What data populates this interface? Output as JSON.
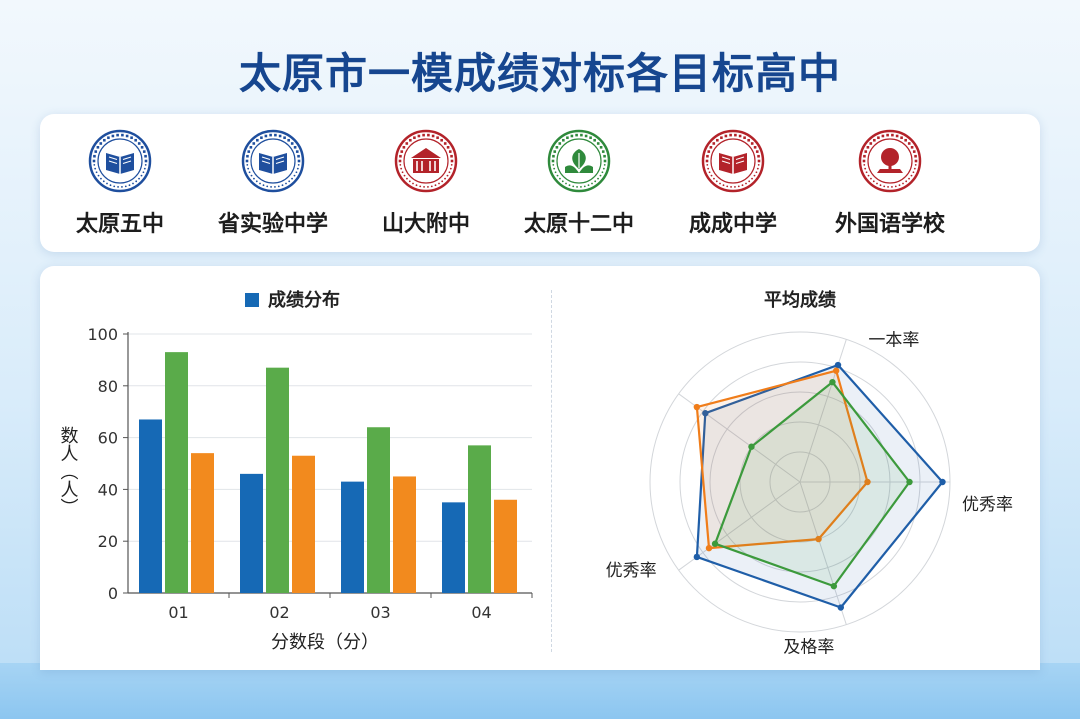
{
  "page": {
    "title": "太原市一模成绩对标各目标高中"
  },
  "schools": [
    {
      "name": "太原五中",
      "color": "#1f4f9e",
      "icon": "book-emblem-icon"
    },
    {
      "name": "省实验中学",
      "color": "#1f4f9e",
      "icon": "book-emblem-icon"
    },
    {
      "name": "山大附中",
      "color": "#b3232a",
      "icon": "building-emblem-icon"
    },
    {
      "name": "太原十二中",
      "color": "#2f8a3c",
      "icon": "leaf-emblem-icon"
    },
    {
      "name": "成成中学",
      "color": "#b3232a",
      "icon": "book-emblem-icon"
    },
    {
      "name": "外国语学校",
      "color": "#b3232a",
      "icon": "tree-emblem-icon"
    }
  ],
  "chart_data": [
    {
      "type": "bar",
      "title": "",
      "legend": [
        "成绩分布"
      ],
      "categories": [
        "01",
        "02",
        "03",
        "04"
      ],
      "series": [
        {
          "values": [
            67,
            46,
            43,
            35
          ],
          "color": "#1669b5"
        },
        {
          "values": [
            93,
            87,
            64,
            57
          ],
          "color": "#5aab4a"
        },
        {
          "values": [
            54,
            53,
            45,
            36
          ],
          "color": "#f28a1e"
        }
      ],
      "xlabel": "分数段（分）",
      "ylabel": "数人（人）",
      "ylim": [
        0,
        100
      ],
      "yticks": [
        0,
        20,
        40,
        60,
        80,
        100
      ],
      "grid": true,
      "legend_position": "top"
    },
    {
      "type": "radar",
      "title": "平均成绩",
      "axes": [
        "一本率",
        "优秀率",
        "及格率",
        "优秀率",
        ""
      ],
      "rmax": 100,
      "series": [
        {
          "values": [
            82,
            95,
            88,
            85,
            78
          ],
          "color": "#1f5ea8"
        },
        {
          "values": [
            78,
            45,
            40,
            75,
            85
          ],
          "color": "#f07d1a"
        },
        {
          "values": [
            70,
            73,
            73,
            70,
            40
          ],
          "color": "#3c9a3c"
        }
      ],
      "grid": true
    }
  ]
}
